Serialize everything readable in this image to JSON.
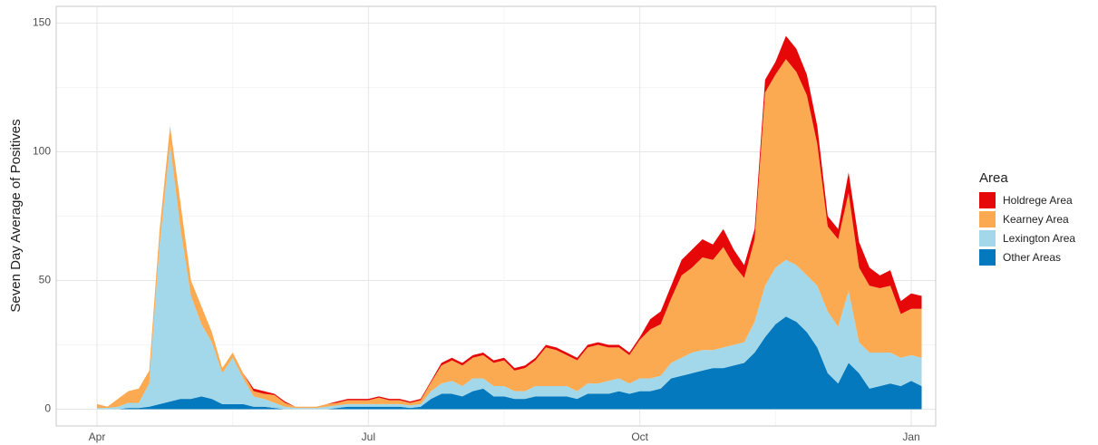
{
  "chart_data": {
    "type": "stacked_area",
    "y_label": "Seven Day Average of Positives",
    "legend_title": "Area",
    "legend": "right",
    "grid": true,
    "ylim": [
      -6.5,
      156.5
    ],
    "yticks": [
      0,
      50,
      100,
      150
    ],
    "categories": [
      "Apr",
      null,
      null,
      null,
      null,
      null,
      null,
      null,
      null,
      null,
      null,
      null,
      null,
      null,
      null,
      null,
      null,
      null,
      null,
      null,
      null,
      null,
      null,
      null,
      null,
      null,
      "Jul",
      null,
      null,
      null,
      null,
      null,
      null,
      null,
      null,
      null,
      null,
      null,
      null,
      null,
      null,
      null,
      null,
      null,
      null,
      null,
      null,
      null,
      null,
      null,
      null,
      null,
      "Oct",
      null,
      null,
      null,
      null,
      null,
      null,
      null,
      null,
      null,
      null,
      null,
      null,
      null,
      null,
      null,
      null,
      null,
      null,
      null,
      null,
      null,
      null,
      null,
      null,
      null,
      "Jan",
      null
    ],
    "series": [
      {
        "name": "Holdrege Area",
        "color": "#e60808",
        "values": [
          0,
          0,
          0,
          0,
          0,
          0,
          0,
          0,
          0,
          0,
          0,
          0,
          0,
          0,
          0,
          1,
          1,
          0.5,
          0.5,
          0,
          0,
          0,
          0,
          0.5,
          0.5,
          0.5,
          0.5,
          0.5,
          0.5,
          0.5,
          0.5,
          0.5,
          0.5,
          1,
          1,
          1,
          1,
          1,
          1,
          1,
          1,
          1,
          1,
          1,
          1,
          1,
          1,
          1,
          1,
          1,
          1,
          1,
          1,
          4,
          5,
          5,
          6,
          7,
          7,
          6,
          7,
          6,
          5,
          4,
          5,
          5,
          9,
          9,
          8,
          7,
          4,
          4,
          8,
          10,
          7,
          5,
          6,
          5,
          6,
          5
        ]
      },
      {
        "name": "Kearney Area",
        "color": "#fbaa52",
        "values": [
          1.5,
          0.5,
          3,
          4.5,
          5.5,
          5,
          6,
          7,
          10,
          6,
          7,
          4,
          2,
          2,
          2,
          2,
          2,
          3,
          1.5,
          0.5,
          0.5,
          0.5,
          1,
          1,
          1.5,
          1.5,
          1.5,
          2.5,
          1.5,
          1.5,
          1,
          1.5,
          3.5,
          7,
          8,
          8,
          8,
          9,
          9,
          10,
          8,
          9,
          10,
          15,
          14,
          12,
          12,
          14,
          15,
          13,
          12,
          11,
          15,
          19,
          20,
          25,
          32,
          33,
          36,
          35,
          39,
          31,
          25,
          32,
          75,
          75,
          78,
          75,
          70,
          55,
          33,
          34,
          38,
          29,
          26,
          25,
          26,
          17,
          18,
          19
        ]
      },
      {
        "name": "Lexington Area",
        "color": "#a2d8ea",
        "values": [
          0.5,
          0.5,
          1,
          2,
          2,
          9,
          62,
          100,
          66,
          40,
          28,
          22,
          12,
          18,
          10,
          4,
          3,
          2,
          1,
          0.5,
          0.5,
          0.5,
          1,
          1,
          1,
          1,
          1,
          1,
          1,
          1,
          1,
          1,
          3,
          4,
          5,
          4,
          5,
          4,
          4,
          4,
          3,
          3,
          4,
          4,
          4,
          4,
          3,
          4,
          4,
          5,
          5,
          4,
          5,
          5,
          5,
          6,
          7,
          8,
          8,
          7,
          8,
          8,
          8,
          12,
          20,
          22,
          22,
          22,
          22,
          24,
          24,
          22,
          28,
          12,
          14,
          13,
          12,
          11,
          10,
          11
        ]
      },
      {
        "name": "Other Areas",
        "color": "#0479bd",
        "values": [
          0,
          0,
          0,
          0.5,
          0.5,
          1,
          2,
          3,
          4,
          4,
          5,
          4,
          2,
          2,
          2,
          1,
          1,
          0.5,
          0,
          0,
          0,
          0,
          0,
          0.5,
          1,
          1,
          1,
          1,
          1,
          1,
          0.5,
          1,
          4,
          6,
          6,
          5,
          7,
          8,
          5,
          5,
          4,
          4,
          5,
          5,
          5,
          5,
          4,
          6,
          6,
          6,
          7,
          6,
          7,
          7,
          8,
          12,
          13,
          14,
          15,
          16,
          16,
          17,
          18,
          22,
          28,
          33,
          36,
          34,
          30,
          24,
          14,
          10,
          18,
          14,
          8,
          9,
          10,
          9,
          11,
          9
        ]
      }
    ]
  }
}
